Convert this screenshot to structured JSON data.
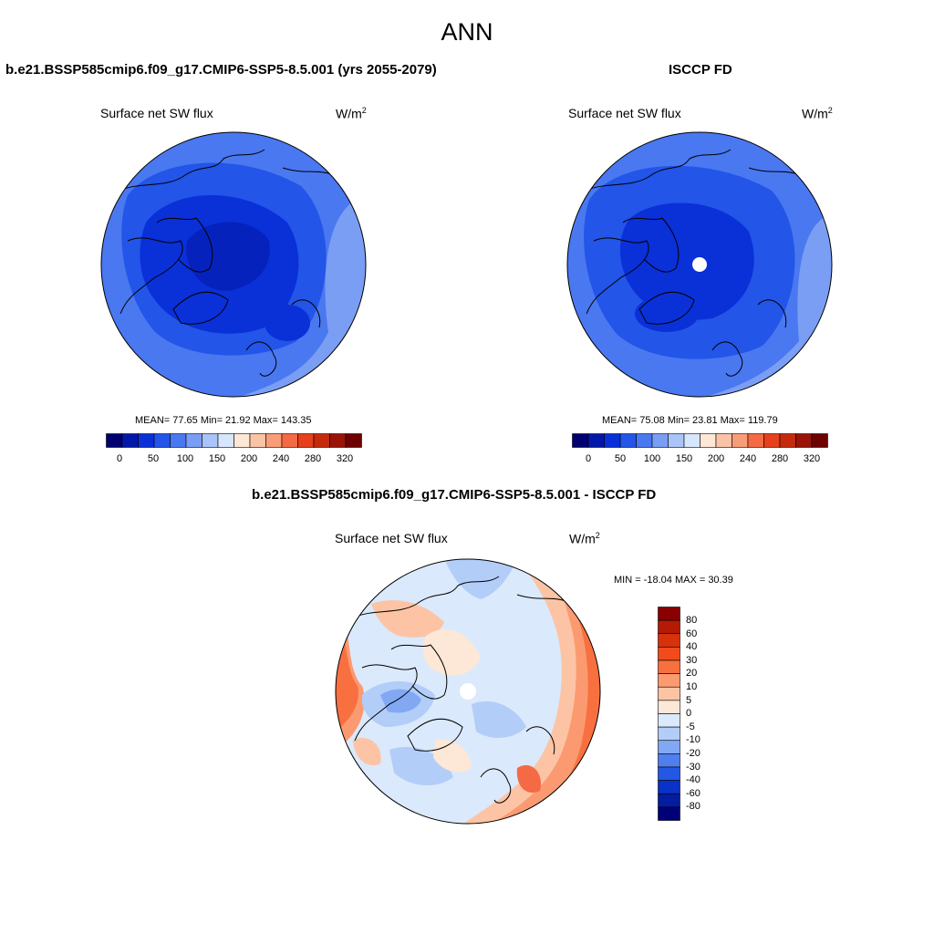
{
  "page_title": "ANN",
  "panels": {
    "model": {
      "title": "b.e21.BSSP585cmip6.f09_g17.CMIP6-SSP5-8.5.001 (yrs 2055-2079)",
      "variable": "Surface net SW flux",
      "units": "W/m",
      "units_exp": "2",
      "stats": "MEAN=  77.65  Min=  21.92  Max= 143.35"
    },
    "obs": {
      "title": "ISCCP FD",
      "variable": "Surface net SW flux",
      "units": "W/m",
      "units_exp": "2",
      "stats": "MEAN=  75.08  Min=  23.81  Max= 119.79"
    },
    "diff": {
      "title": "b.e21.BSSP585cmip6.f09_g17.CMIP6-SSP5-8.5.001 - ISCCP FD",
      "variable": "Surface net SW flux",
      "units": "W/m",
      "units_exp": "2",
      "stats": "MIN = -18.04 MAX =  30.39"
    }
  },
  "colorbars": {
    "abs_ticks": [
      "0",
      "50",
      "100",
      "150",
      "200",
      "240",
      "280",
      "320"
    ],
    "abs_colors": [
      "#000070",
      "#0318a8",
      "#0a30d8",
      "#2255e8",
      "#4a78f0",
      "#7a9ef4",
      "#a9c4f8",
      "#d6e6fc",
      "#fde7d6",
      "#fbc3a6",
      "#f99c78",
      "#f46a44",
      "#e6401c",
      "#c62a0c",
      "#9a1306",
      "#6e0000"
    ],
    "diff_ticks": [
      "80",
      "60",
      "40",
      "30",
      "20",
      "10",
      "5",
      "0",
      "-5",
      "-10",
      "-20",
      "-30",
      "-40",
      "-60",
      "-80"
    ],
    "diff_colors": [
      "#8a0000",
      "#b41a04",
      "#d8320c",
      "#f24a1c",
      "#f87040",
      "#fb9a70",
      "#fcc4a4",
      "#fde7d6",
      "#dbe9fc",
      "#b2cdf8",
      "#82a8f4",
      "#4f7fee",
      "#2458e4",
      "#0a32c8",
      "#041ca0",
      "#000078"
    ]
  }
}
